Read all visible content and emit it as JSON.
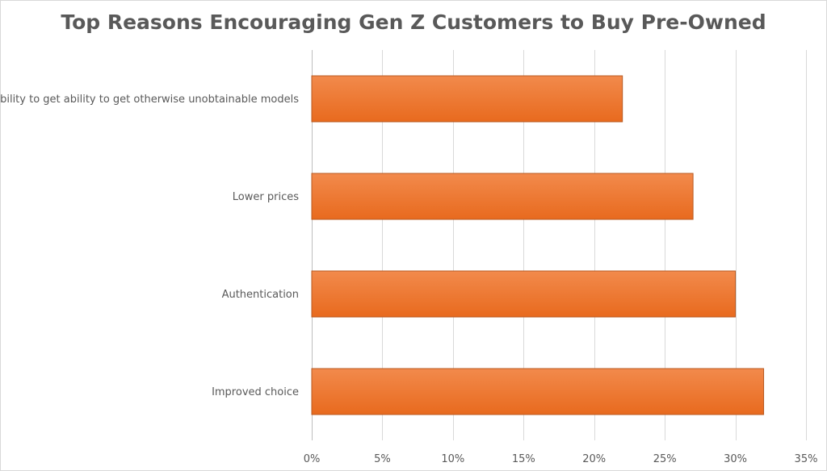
{
  "chart_data": {
    "type": "bar",
    "orientation": "horizontal",
    "title": "Top Reasons Encouraging Gen Z Customers to Buy Pre-Owned",
    "categories": [
      "Ability to get ability to get otherwise unobtainable models",
      "Lower prices",
      "Authentication",
      "Improved choice"
    ],
    "values": [
      22,
      27,
      30,
      32
    ],
    "value_unit": "%",
    "xlim": [
      0,
      35
    ],
    "x_ticks": [
      0,
      5,
      10,
      15,
      20,
      25,
      30,
      35
    ],
    "x_tick_labels": [
      "0%",
      "5%",
      "10%",
      "15%",
      "20%",
      "25%",
      "30%",
      "35%"
    ],
    "xlabel": "",
    "ylabel": "",
    "grid": true,
    "legend": "none",
    "bar_color": "#ED7D31",
    "bar_color_light": "#F28A4C",
    "bar_color_dark": "#E86A1E",
    "bar_edge_color": "#B85A22"
  }
}
